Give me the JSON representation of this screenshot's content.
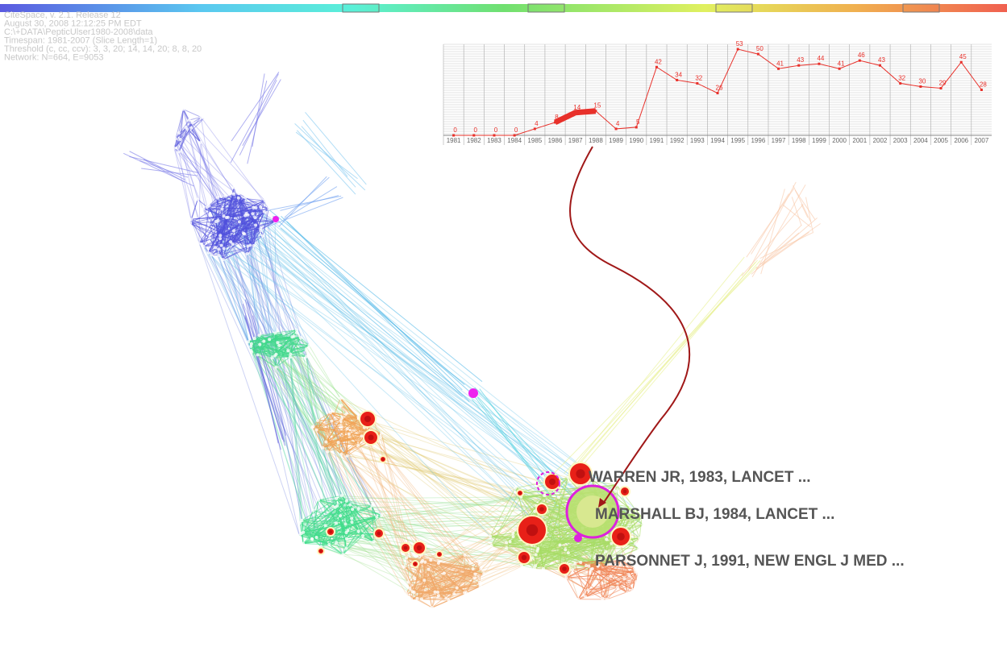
{
  "header": {
    "lines": [
      "CiteSpace, v. 2.1. Release 12",
      "August 30, 2008 12:12:25 PM EDT",
      "C:\\+DATA\\PepticUlser1980-2008\\data",
      "Timespan: 1981-2007 (Slice Length=1)",
      "Threshold (c, cc, ccv): 3, 3, 20; 14, 14, 20; 8, 8, 20",
      "Network: N=664, E=9053"
    ]
  },
  "chart_data": {
    "type": "line",
    "categories": [
      "1981",
      "1982",
      "1983",
      "1984",
      "1985",
      "1986",
      "1987",
      "1988",
      "1989",
      "1990",
      "1991",
      "1992",
      "1993",
      "1994",
      "1995",
      "1996",
      "1997",
      "1998",
      "1999",
      "2000",
      "2001",
      "2002",
      "2003",
      "2004",
      "2005",
      "2006",
      "2007"
    ],
    "values": [
      0,
      0,
      0,
      0,
      4,
      8,
      14,
      15,
      4,
      5,
      42,
      34,
      32,
      26,
      53,
      50,
      41,
      43,
      44,
      41,
      46,
      43,
      32,
      30,
      29,
      45,
      28
    ],
    "color": "#e8302a",
    "ylim": [
      0,
      56
    ],
    "burst": [
      "1986",
      "1988"
    ]
  },
  "node_labels": [
    "WARREN JR, 1983, LANCET ...",
    "MARSHALL BJ, 1984, LANCET ...",
    "PARSONNET J, 1991, NEW ENGL J MED ..."
  ]
}
